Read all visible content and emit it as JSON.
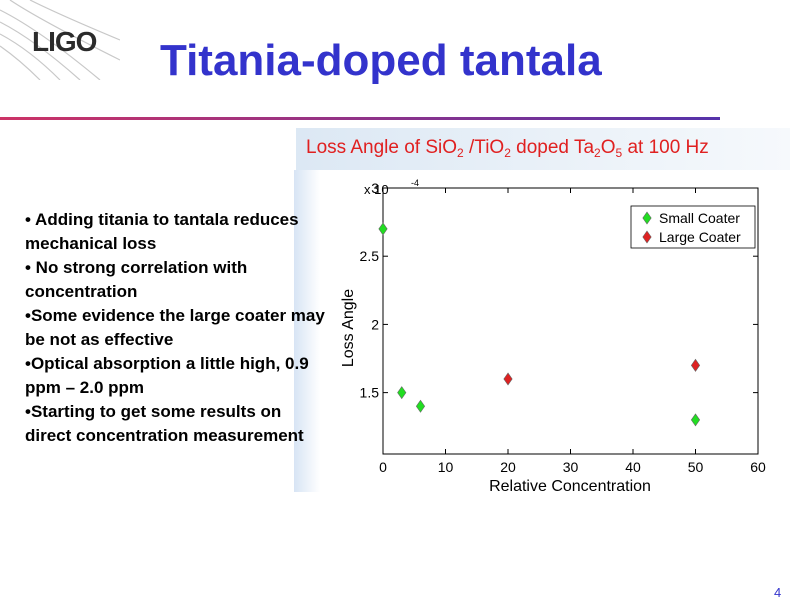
{
  "logo": {
    "text": "LIGO"
  },
  "title": "Titania-doped tantala",
  "bullets": [
    "• Adding titania to tantala reduces mechanical loss",
    "• No strong correlation with concentration",
    "•Some evidence the large coater may be not as effective",
    "•Optical absorption a little high, 0.9 ppm – 2.0 ppm",
    "•Starting to get some results on direct concentration measurement"
  ],
  "page_number": "4",
  "colors": {
    "title": "#3333cc",
    "chart_title": "#e02020",
    "rule": "#cc3366",
    "small": "#22dd22",
    "large": "#dd2222"
  },
  "chart_data": {
    "type": "scatter",
    "title_parts": [
      "Loss Angle of SiO",
      "2",
      " /TiO",
      "2",
      " doped Ta",
      "2",
      "O",
      "5",
      " at 100 Hz"
    ],
    "xlabel": "Relative Concentration",
    "ylabel": "Loss Angle",
    "multiplier": "x 10",
    "multiplier_exp": "-4",
    "xlim": [
      0,
      60
    ],
    "ylim": [
      1.05,
      3.0
    ],
    "xticks": [
      0,
      10,
      20,
      30,
      40,
      50,
      60
    ],
    "yticks": [
      1.5,
      2,
      2.5,
      3
    ],
    "ytick_labels": [
      "1.5",
      "2",
      "2.5",
      "3"
    ],
    "legend_position": "top-right",
    "series": [
      {
        "name": "Small Coater",
        "color": "#22dd22",
        "points": [
          [
            0,
            2.7
          ],
          [
            3,
            1.5
          ],
          [
            6,
            1.4
          ],
          [
            50,
            1.3
          ]
        ]
      },
      {
        "name": "Large Coater",
        "color": "#dd2222",
        "points": [
          [
            20,
            1.6
          ],
          [
            50,
            1.7
          ]
        ]
      }
    ]
  }
}
